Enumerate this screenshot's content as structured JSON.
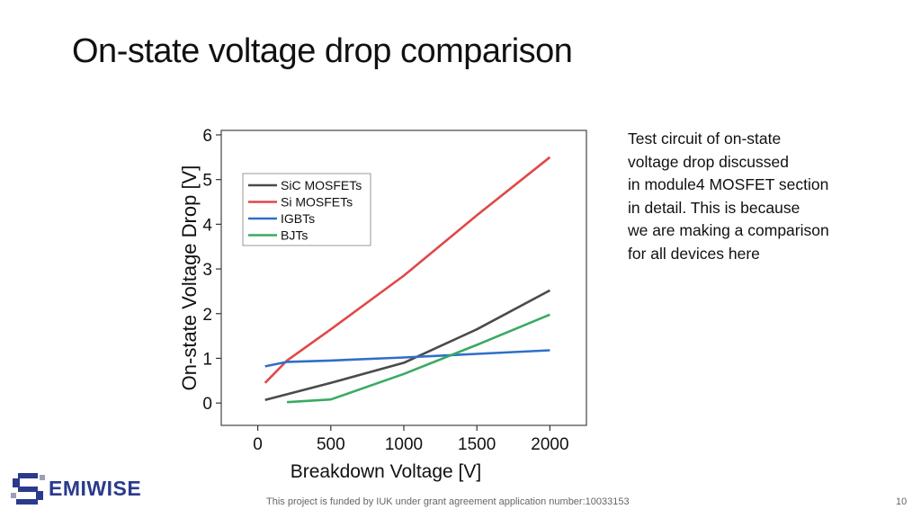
{
  "slide": {
    "title": "On-state voltage drop comparison",
    "side_text": [
      "Test circuit of on-state",
      "voltage drop discussed",
      "in module4 MOSFET section",
      "in detail. This is because",
      "we are making a comparison",
      "for all devices here"
    ],
    "footer": "This project is funded by IUK under grant agreement application number:10033153",
    "page_number": "10",
    "logo_text": "EMIWISE"
  },
  "chart_data": {
    "type": "line",
    "xlabel": "Breakdown Voltage [V]",
    "ylabel": "On-state Voltage Drop [V]",
    "xlim": [
      -250,
      2250
    ],
    "ylim": [
      -0.5,
      6.1
    ],
    "xticks": [
      0,
      500,
      1000,
      1500,
      2000
    ],
    "yticks": [
      0,
      1,
      2,
      3,
      4,
      5,
      6
    ],
    "grid": false,
    "legend_position": "top-left",
    "series": [
      {
        "name": "SiC MOSFETs",
        "color": "#4a4a4a",
        "points": [
          [
            50,
            0.07
          ],
          [
            500,
            0.45
          ],
          [
            1000,
            0.9
          ],
          [
            1500,
            1.65
          ],
          [
            2000,
            2.52
          ]
        ]
      },
      {
        "name": "Si MOSFETs",
        "color": "#e04848",
        "points": [
          [
            50,
            0.45
          ],
          [
            200,
            0.95
          ],
          [
            500,
            1.65
          ],
          [
            1000,
            2.85
          ],
          [
            1500,
            4.2
          ],
          [
            2000,
            5.5
          ]
        ]
      },
      {
        "name": "IGBTs",
        "color": "#2f6fc8",
        "points": [
          [
            50,
            0.82
          ],
          [
            200,
            0.92
          ],
          [
            500,
            0.95
          ],
          [
            1000,
            1.02
          ],
          [
            1500,
            1.1
          ],
          [
            2000,
            1.18
          ]
        ]
      },
      {
        "name": "BJTs",
        "color": "#3aaa64",
        "points": [
          [
            200,
            0.02
          ],
          [
            500,
            0.08
          ],
          [
            1000,
            0.65
          ],
          [
            1500,
            1.3
          ],
          [
            2000,
            1.98
          ]
        ]
      }
    ]
  }
}
